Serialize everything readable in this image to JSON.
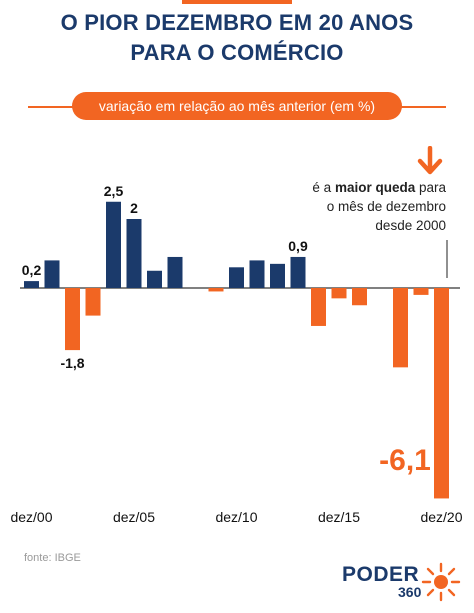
{
  "header": {
    "title_line1": "O PIOR DEZEMBRO EM 20 ANOS",
    "title_line2": "PARA O COMÉRCIO",
    "subtitle": "variação em relação ao mês anterior (em %)"
  },
  "annotation": {
    "part1": "é a ",
    "bold": "maior queda",
    "part2": " para",
    "line2": "o mês de dezembro",
    "line3": "desde 2000"
  },
  "footer": {
    "source": "fonte: IBGE",
    "logo_main": "PODER",
    "logo_sub": "360"
  },
  "colors": {
    "positive": "#1b3a6b",
    "negative": "#f26522",
    "title": "#1b3a6b",
    "accent": "#f26522"
  },
  "chart_data": {
    "type": "bar",
    "title": "O PIOR DEZEMBRO EM 20 ANOS PARA O COMÉRCIO",
    "ylabel": "variação em relação ao mês anterior (em %)",
    "categories": [
      "dez/00",
      "dez/01",
      "dez/02",
      "dez/03",
      "dez/04",
      "dez/05",
      "dez/06",
      "dez/07",
      "dez/08",
      "dez/09",
      "dez/10",
      "dez/11",
      "dez/12",
      "dez/13",
      "dez/14",
      "dez/15",
      "dez/16",
      "dez/17",
      "dez/18",
      "dez/19",
      "dez/20"
    ],
    "x_tick_labels": [
      "dez/00",
      "dez/05",
      "dez/10",
      "dez/15",
      "dez/20"
    ],
    "values": [
      0.2,
      0.8,
      -1.8,
      -0.8,
      2.5,
      2,
      0.5,
      0.9,
      0,
      -0.1,
      0.6,
      0.8,
      0.7,
      0.9,
      -1.1,
      -0.3,
      -0.5,
      0,
      -2.3,
      -0.2,
      -6.1
    ],
    "data_labels": {
      "dez/00": "0,2",
      "dez/02": "-1,8",
      "dez/04": "2,5",
      "dez/05": "2",
      "dez/13": "0,9",
      "dez/20": "-6,1"
    },
    "ylim": [
      -6.1,
      2.5
    ],
    "grid": false,
    "legend": "none"
  }
}
